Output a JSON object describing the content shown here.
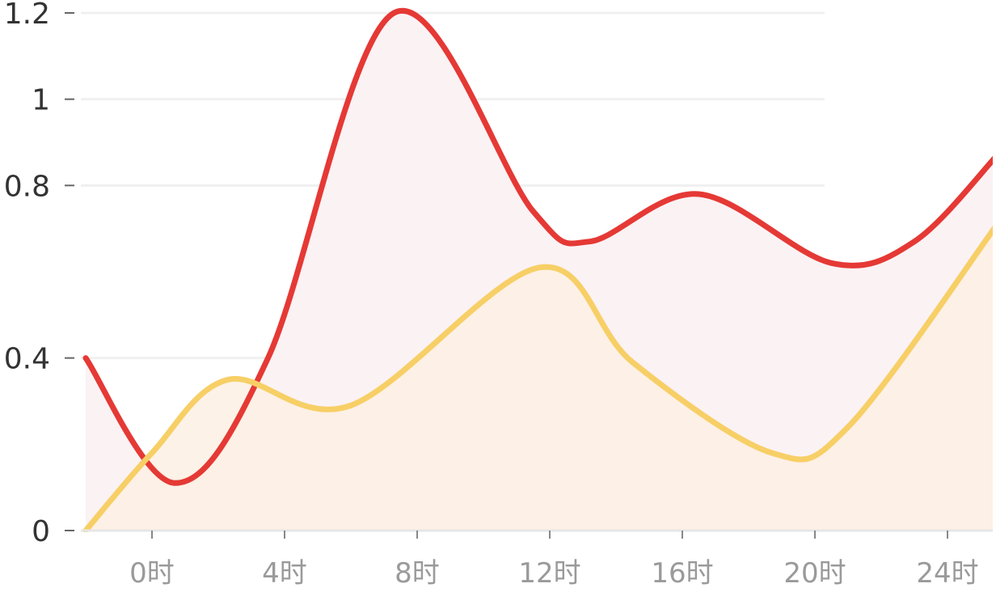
{
  "colors": {
    "red_line": "#e53935",
    "red_fill": "#fbf2f4",
    "yellow_line": "#f7cf66",
    "yellow_fill": "#fdf0e3",
    "grid": "#f0f0f0",
    "axis": "#e6e6e6",
    "ytick_text": "#333333",
    "xtick_text": "#9a9a9a"
  },
  "chart_data": {
    "type": "area",
    "title": "",
    "xlabel": "",
    "ylabel": "",
    "xlim": [
      -2,
      25
    ],
    "ylim": [
      0,
      1.2
    ],
    "grid": true,
    "x_ticks": [
      0,
      4,
      8,
      12,
      16,
      20,
      24
    ],
    "x_tick_labels": [
      "0时",
      "4时",
      "8时",
      "12时",
      "16时",
      "20时",
      "24时"
    ],
    "y_ticks": [
      0,
      0.4,
      0.8,
      1,
      1.2
    ],
    "y_tick_labels": [
      "0",
      "0.4",
      "0.8",
      "1",
      "1.2"
    ],
    "series": [
      {
        "color": "#e53935",
        "fill": "#fbf2f4",
        "x": [
          -2,
          0.7,
          3.5,
          7.3,
          11.5,
          13.2,
          16.5,
          20.5,
          23,
          25.5
        ],
        "values": [
          0.4,
          0.11,
          0.4,
          1.2,
          0.74,
          0.67,
          0.78,
          0.62,
          0.67,
          0.87
        ]
      },
      {
        "color": "#f7cf66",
        "fill": "#fdf0e3",
        "x": [
          -2,
          0,
          2.3,
          6,
          11.7,
          14.5,
          18.7,
          21,
          25.5
        ],
        "values": [
          0,
          0.18,
          0.35,
          0.29,
          0.61,
          0.39,
          0.18,
          0.24,
          0.71
        ]
      }
    ]
  }
}
